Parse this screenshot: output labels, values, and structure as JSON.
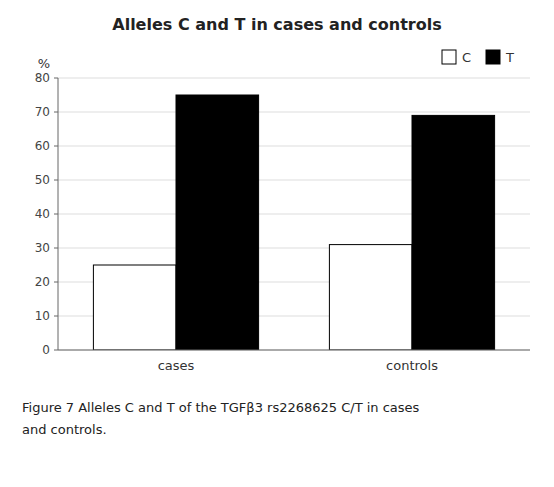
{
  "chart_data": {
    "type": "bar",
    "title": "Alleles C and T in cases and controls",
    "categories": [
      "cases",
      "controls"
    ],
    "series": [
      {
        "name": "C",
        "color": "#ffffff",
        "values": [
          25,
          31
        ]
      },
      {
        "name": "T",
        "color": "#000000",
        "values": [
          75,
          69
        ]
      }
    ],
    "y_label": "%",
    "ylim": [
      0,
      80
    ],
    "yticks": [
      0,
      10,
      20,
      30,
      40,
      50,
      60,
      70,
      80
    ],
    "grid": true,
    "legend": "upper right",
    "annotations": [
      "Figure 7 Alleles C and T of the TGFβ3 rs2268625 C/T in cases",
      "and controls."
    ]
  }
}
